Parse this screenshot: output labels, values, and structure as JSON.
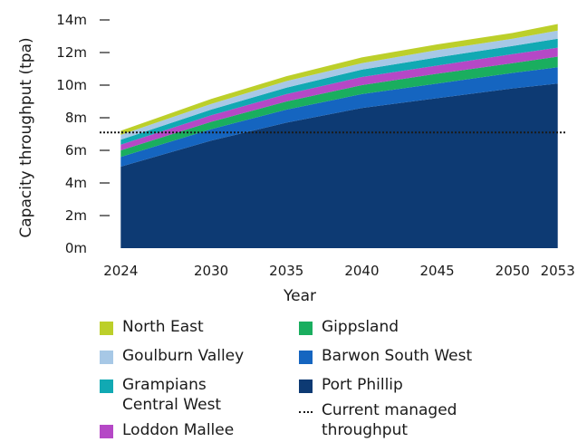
{
  "chart_data": {
    "type": "area",
    "stacked": true,
    "xlabel": "Year",
    "ylabel": "Capacity throughput (tpa)",
    "x": [
      2024,
      2030,
      2035,
      2040,
      2045,
      2050,
      2053
    ],
    "xticks": [
      "2024",
      "2030",
      "2035",
      "2040",
      "2045",
      "2050",
      "2053"
    ],
    "yticks": [
      "0m",
      "2m",
      "4m",
      "6m",
      "8m",
      "10m",
      "12m",
      "14m"
    ],
    "ylim": [
      0,
      14
    ],
    "series": [
      {
        "name": "Port Phillip",
        "color": "#0d3a73",
        "values": [
          5.0,
          6.6,
          7.7,
          8.6,
          9.2,
          9.8,
          10.1
        ]
      },
      {
        "name": "Barwon South West",
        "color": "#1565c0",
        "values": [
          0.6,
          0.7,
          0.8,
          0.85,
          0.9,
          0.95,
          1.0
        ]
      },
      {
        "name": "Gippsland",
        "color": "#1aae5f",
        "values": [
          0.4,
          0.45,
          0.5,
          0.55,
          0.6,
          0.6,
          0.65
        ]
      },
      {
        "name": "Loddon Mallee",
        "color": "#b548c6",
        "values": [
          0.35,
          0.4,
          0.45,
          0.5,
          0.5,
          0.55,
          0.55
        ]
      },
      {
        "name": "Grampians Central West",
        "color": "#11a9b3",
        "values": [
          0.3,
          0.35,
          0.4,
          0.45,
          0.5,
          0.5,
          0.55
        ]
      },
      {
        "name": "Goulburn Valley",
        "color": "#a7c8e6",
        "values": [
          0.3,
          0.35,
          0.4,
          0.4,
          0.45,
          0.45,
          0.5
        ]
      },
      {
        "name": "North East",
        "color": "#bccf2a",
        "values": [
          0.25,
          0.3,
          0.3,
          0.35,
          0.35,
          0.35,
          0.4
        ]
      }
    ],
    "reference_line": {
      "name": "Current managed throughput",
      "value": 7.1,
      "style": "dotted"
    }
  },
  "legend": {
    "left": [
      {
        "label": "North East",
        "color": "#bccf2a"
      },
      {
        "label": "Goulburn Valley",
        "color": "#a7c8e6"
      },
      {
        "label": "Grampians Central West",
        "color": "#11a9b3"
      },
      {
        "label": "Loddon Mallee",
        "color": "#b548c6"
      }
    ],
    "right": [
      {
        "label": "Gippsland",
        "color": "#1aae5f"
      },
      {
        "label": "Barwon South West",
        "color": "#1565c0"
      },
      {
        "label": "Port Phillip",
        "color": "#0d3a73"
      },
      {
        "label": "Current managed throughput",
        "dotted": true
      }
    ]
  }
}
